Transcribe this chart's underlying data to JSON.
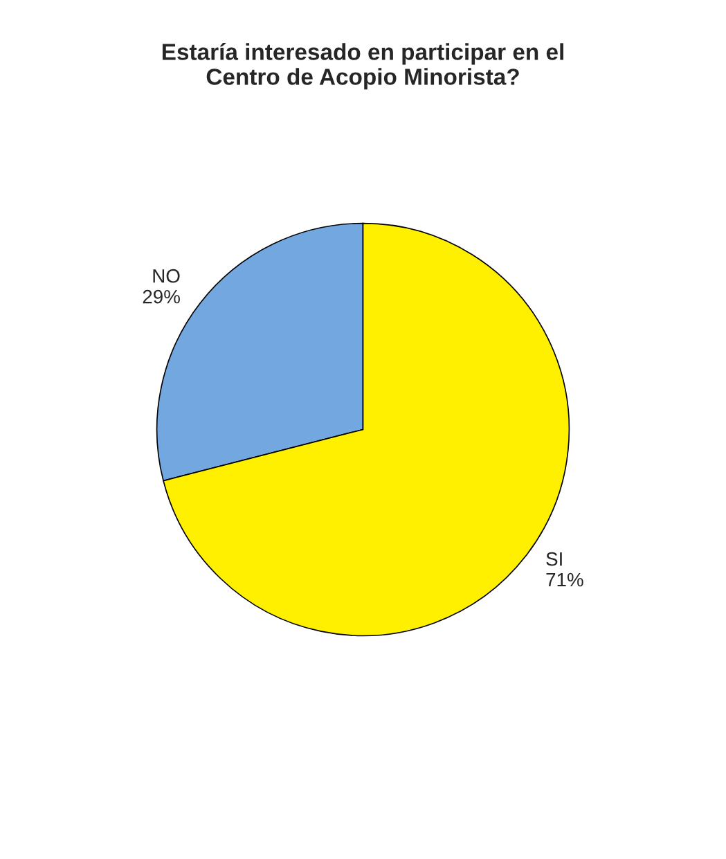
{
  "chart_data": {
    "type": "pie",
    "title": "Estaría interesado en participar en el\nCentro de Acopio Minorista?",
    "categories": [
      "NO",
      "SI"
    ],
    "values": [
      29,
      71
    ],
    "colors": [
      "#73a7e0",
      "#fff000"
    ],
    "value_labels": [
      "29%",
      "71%"
    ],
    "legend": false
  }
}
